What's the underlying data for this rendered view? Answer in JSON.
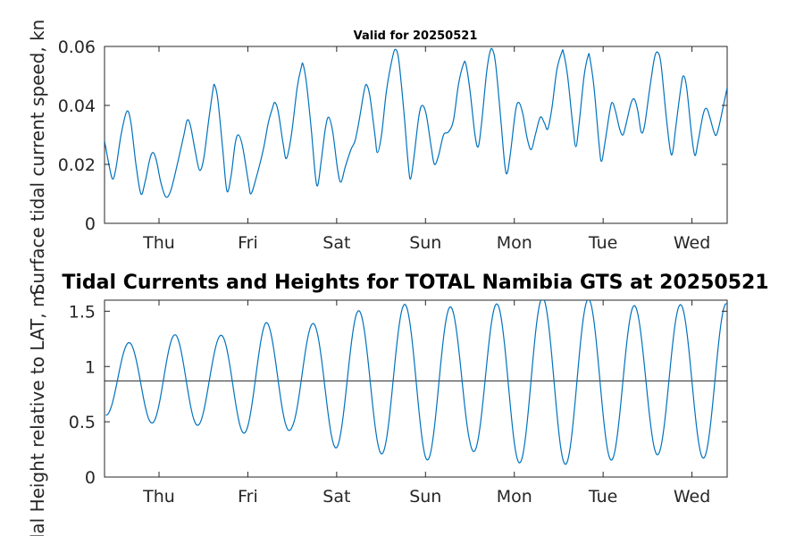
{
  "chart_data": [
    {
      "type": "line",
      "title": "Valid for 20250521",
      "ylabel": "Surface tidal current speed, kn",
      "xlabel": "",
      "x_ticks": [
        "Thu",
        "Fri",
        "Sat",
        "Sun",
        "Mon",
        "Tue",
        "Wed"
      ],
      "x_range_days": [
        0,
        7
      ],
      "ylim": [
        0,
        0.06
      ],
      "y_ticks": [
        "0",
        "0.02",
        "0.04",
        "0.06"
      ],
      "grid": false,
      "series": [
        {
          "color": "#0072bd",
          "points": [
            [
              0.0,
              0.028
            ],
            [
              0.06,
              0.019
            ],
            [
              0.1,
              0.015
            ],
            [
              0.14,
              0.019
            ],
            [
              0.2,
              0.03
            ],
            [
              0.27,
              0.038
            ],
            [
              0.32,
              0.034
            ],
            [
              0.38,
              0.02
            ],
            [
              0.44,
              0.01
            ],
            [
              0.49,
              0.014
            ],
            [
              0.55,
              0.022
            ],
            [
              0.59,
              0.024
            ],
            [
              0.63,
              0.021
            ],
            [
              0.68,
              0.014
            ],
            [
              0.74,
              0.009
            ],
            [
              0.8,
              0.011
            ],
            [
              0.88,
              0.02
            ],
            [
              0.96,
              0.03
            ],
            [
              1.0,
              0.035
            ],
            [
              1.04,
              0.033
            ],
            [
              1.1,
              0.024
            ],
            [
              1.15,
              0.018
            ],
            [
              1.2,
              0.022
            ],
            [
              1.26,
              0.035
            ],
            [
              1.31,
              0.045
            ],
            [
              1.33,
              0.047
            ],
            [
              1.37,
              0.042
            ],
            [
              1.43,
              0.025
            ],
            [
              1.48,
              0.011
            ],
            [
              1.53,
              0.016
            ],
            [
              1.58,
              0.027
            ],
            [
              1.62,
              0.03
            ],
            [
              1.67,
              0.026
            ],
            [
              1.74,
              0.014
            ],
            [
              1.77,
              0.01
            ],
            [
              1.83,
              0.015
            ],
            [
              1.92,
              0.025
            ],
            [
              1.98,
              0.034
            ],
            [
              2.03,
              0.039
            ],
            [
              2.06,
              0.041
            ],
            [
              2.1,
              0.038
            ],
            [
              2.16,
              0.027
            ],
            [
              2.2,
              0.022
            ],
            [
              2.26,
              0.03
            ],
            [
              2.33,
              0.046
            ],
            [
              2.38,
              0.053
            ],
            [
              2.4,
              0.054
            ],
            [
              2.44,
              0.048
            ],
            [
              2.5,
              0.032
            ],
            [
              2.55,
              0.016
            ],
            [
              2.58,
              0.013
            ],
            [
              2.62,
              0.021
            ],
            [
              2.67,
              0.032
            ],
            [
              2.71,
              0.036
            ],
            [
              2.76,
              0.031
            ],
            [
              2.82,
              0.018
            ],
            [
              2.86,
              0.014
            ],
            [
              2.91,
              0.019
            ],
            [
              2.98,
              0.025
            ],
            [
              3.03,
              0.028
            ],
            [
              3.08,
              0.035
            ],
            [
              3.14,
              0.045
            ],
            [
              3.17,
              0.047
            ],
            [
              3.21,
              0.043
            ],
            [
              3.27,
              0.03
            ],
            [
              3.3,
              0.024
            ],
            [
              3.35,
              0.03
            ],
            [
              3.41,
              0.045
            ],
            [
              3.48,
              0.056
            ],
            [
              3.52,
              0.059
            ],
            [
              3.56,
              0.055
            ],
            [
              3.62,
              0.038
            ],
            [
              3.67,
              0.021
            ],
            [
              3.7,
              0.015
            ],
            [
              3.74,
              0.022
            ],
            [
              3.8,
              0.036
            ],
            [
              3.84,
              0.04
            ],
            [
              3.89,
              0.037
            ],
            [
              3.95,
              0.026
            ],
            [
              3.99,
              0.02
            ],
            [
              4.04,
              0.023
            ],
            [
              4.1,
              0.03
            ],
            [
              4.16,
              0.031
            ],
            [
              4.22,
              0.035
            ],
            [
              4.28,
              0.047
            ],
            [
              4.34,
              0.054
            ],
            [
              4.37,
              0.054
            ],
            [
              4.42,
              0.045
            ],
            [
              4.48,
              0.03
            ],
            [
              4.52,
              0.026
            ],
            [
              4.56,
              0.034
            ],
            [
              4.62,
              0.051
            ],
            [
              4.66,
              0.058
            ],
            [
              4.69,
              0.059
            ],
            [
              4.73,
              0.054
            ],
            [
              4.79,
              0.036
            ],
            [
              4.84,
              0.02
            ],
            [
              4.87,
              0.017
            ],
            [
              4.91,
              0.024
            ],
            [
              4.97,
              0.038
            ],
            [
              5.01,
              0.041
            ],
            [
              5.06,
              0.037
            ],
            [
              5.11,
              0.029
            ],
            [
              5.16,
              0.025
            ],
            [
              5.21,
              0.03
            ],
            [
              5.27,
              0.036
            ],
            [
              5.32,
              0.034
            ],
            [
              5.36,
              0.032
            ],
            [
              5.41,
              0.039
            ],
            [
              5.47,
              0.052
            ],
            [
              5.53,
              0.058
            ],
            [
              5.55,
              0.058
            ],
            [
              5.6,
              0.05
            ],
            [
              5.66,
              0.034
            ],
            [
              5.7,
              0.026
            ],
            [
              5.74,
              0.034
            ],
            [
              5.8,
              0.05
            ],
            [
              5.85,
              0.057
            ],
            [
              5.87,
              0.056
            ],
            [
              5.92,
              0.046
            ],
            [
              5.98,
              0.027
            ],
            [
              6.01,
              0.021
            ],
            [
              6.05,
              0.027
            ],
            [
              6.11,
              0.038
            ],
            [
              6.14,
              0.041
            ],
            [
              6.18,
              0.038
            ],
            [
              6.23,
              0.032
            ],
            [
              6.27,
              0.03
            ],
            [
              6.31,
              0.034
            ],
            [
              6.37,
              0.041
            ],
            [
              6.41,
              0.042
            ],
            [
              6.45,
              0.038
            ],
            [
              6.49,
              0.031
            ],
            [
              6.53,
              0.033
            ],
            [
              6.59,
              0.045
            ],
            [
              6.65,
              0.056
            ],
            [
              6.69,
              0.058
            ],
            [
              6.73,
              0.054
            ],
            [
              6.79,
              0.037
            ],
            [
              6.84,
              0.025
            ],
            [
              6.87,
              0.024
            ],
            [
              6.91,
              0.033
            ],
            [
              6.97,
              0.046
            ],
            [
              7.0,
              0.05
            ],
            [
              7.04,
              0.046
            ],
            [
              7.1,
              0.03
            ],
            [
              7.14,
              0.023
            ],
            [
              7.18,
              0.028
            ],
            [
              7.24,
              0.037
            ],
            [
              7.28,
              0.039
            ],
            [
              7.32,
              0.036
            ],
            [
              7.37,
              0.031
            ],
            [
              7.4,
              0.03
            ],
            [
              7.44,
              0.034
            ],
            [
              7.5,
              0.042
            ],
            [
              7.53,
              0.046
            ]
          ]
        }
      ]
    },
    {
      "type": "line",
      "title": "Tidal Currents and Heights for TOTAL Namibia GTS at 20250521",
      "ylabel": "Tidal Height relative to LAT, m",
      "xlabel": "",
      "x_ticks": [
        "Thu",
        "Fri",
        "Sat",
        "Sun",
        "Mon",
        "Tue",
        "Wed"
      ],
      "ylim": [
        0,
        1.6
      ],
      "y_ticks": [
        "0",
        "0.5",
        "1",
        "1.5"
      ],
      "grid": false,
      "mean_level": 0.87,
      "series": [
        {
          "color": "#0072bd",
          "tidal_model": {
            "mean": 0.87,
            "period_days": 0.5175,
            "phase_days": 0.1775,
            "x_start_days": -0.6,
            "x_end_days": 6.4,
            "amplitude_points": [
              [
                -0.6,
                0.31
              ],
              [
                0.2,
                0.42
              ],
              [
                0.6,
                0.39
              ],
              [
                1.2,
                0.53
              ],
              [
                1.5,
                0.44
              ],
              [
                2.0,
                0.61
              ],
              [
                2.5,
                0.66
              ],
              [
                3.0,
                0.72
              ],
              [
                3.5,
                0.63
              ],
              [
                4.0,
                0.74
              ],
              [
                4.5,
                0.76
              ],
              [
                5.0,
                0.73
              ],
              [
                5.5,
                0.66
              ],
              [
                6.0,
                0.7
              ],
              [
                6.4,
                0.7
              ]
            ]
          }
        }
      ]
    }
  ]
}
